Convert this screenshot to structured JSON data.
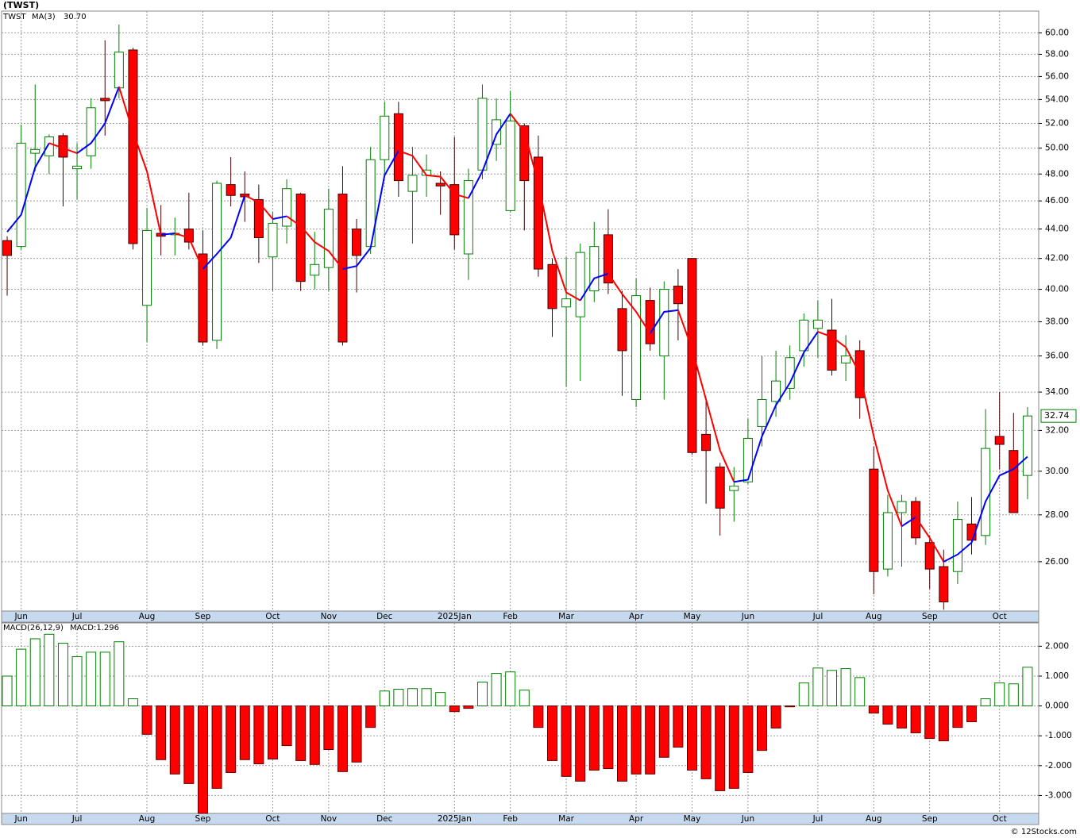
{
  "credit": "© 12Stocks.com",
  "chart_data": [
    {
      "type": "candlestick",
      "title": "(TWST)",
      "legend": "TWST",
      "categories": [
        null,
        null,
        null,
        null,
        null,
        null,
        null,
        null,
        null,
        null,
        null,
        null,
        null,
        null,
        null,
        null,
        null,
        null,
        null,
        null,
        null,
        null,
        null,
        null,
        null,
        null,
        null,
        null,
        null,
        null,
        null,
        null,
        null,
        null,
        null,
        null,
        null,
        null,
        null,
        null,
        null,
        null,
        null,
        null,
        null,
        null,
        null,
        null,
        null,
        null,
        null,
        null,
        null,
        null,
        null,
        null,
        null,
        null,
        null,
        null,
        null,
        null,
        null,
        null,
        null,
        null,
        null,
        null,
        null,
        null,
        null,
        null,
        null,
        null
      ],
      "open": [
        43.2,
        42.8,
        49.6,
        49.4,
        51.0,
        48.4,
        49.4,
        54.1,
        55.0,
        58.4,
        39.0,
        43.7,
        43.6,
        44.0,
        42.3,
        36.9,
        47.2,
        46.5,
        46.1,
        42.1,
        44.2,
        46.5,
        40.9,
        41.4,
        46.5,
        44.0,
        42.8,
        49.1,
        52.8,
        46.7,
        47.9,
        47.3,
        47.2,
        42.3,
        48.3,
        50.3,
        45.3,
        51.8,
        49.3,
        41.6,
        38.9,
        38.3,
        39.9,
        43.6,
        38.8,
        33.6,
        39.3,
        36.0,
        40.2,
        42.0,
        31.8,
        30.2,
        29.1,
        29.5,
        32.2,
        33.5,
        34.2,
        36.3,
        37.6,
        37.5,
        35.6,
        36.3,
        30.1,
        25.7,
        28.1,
        28.6,
        26.8,
        25.8,
        25.6,
        27.6,
        27.1,
        31.7,
        31.0,
        29.8
      ],
      "high": [
        43.5,
        51.9,
        55.3,
        51.1,
        51.2,
        50.4,
        54.1,
        59.3,
        60.8,
        58.6,
        45.5,
        45.7,
        44.8,
        46.6,
        43.9,
        47.5,
        49.3,
        48.2,
        47.2,
        45.2,
        47.6,
        46.6,
        43.8,
        46.9,
        48.6,
        44.7,
        50.1,
        53.8,
        53.8,
        50.1,
        49.5,
        48.2,
        50.9,
        48.4,
        55.3,
        54.1,
        54.7,
        52.0,
        51.0,
        42.0,
        42.1,
        43.0,
        44.5,
        45.4,
        39.9,
        40.7,
        40.1,
        40.5,
        41.3,
        42.0,
        33.6,
        30.4,
        30.2,
        32.6,
        36.0,
        36.3,
        36.6,
        38.5,
        39.3,
        39.4,
        37.2,
        36.9,
        31.2,
        28.9,
        28.9,
        28.8,
        27.1,
        26.5,
        28.6,
        28.8,
        33.1,
        34.0,
        32.9,
        33.2
      ],
      "low": [
        39.6,
        42.6,
        48.2,
        48.0,
        45.6,
        46.1,
        48.4,
        51.0,
        54.1,
        42.6,
        36.8,
        42.2,
        42.2,
        42.6,
        36.6,
        36.4,
        45.6,
        44.5,
        41.7,
        39.9,
        43.0,
        39.9,
        40.0,
        39.9,
        36.6,
        39.8,
        42.3,
        47.8,
        46.3,
        43.0,
        46.3,
        45.0,
        42.6,
        40.6,
        47.6,
        49.0,
        45.2,
        43.9,
        40.8,
        37.1,
        34.3,
        34.6,
        39.2,
        39.7,
        33.8,
        33.2,
        36.3,
        33.6,
        36.9,
        30.8,
        28.5,
        27.1,
        27.7,
        29.4,
        31.2,
        32.7,
        33.6,
        35.4,
        35.9,
        34.9,
        34.6,
        32.6,
        24.7,
        25.4,
        25.8,
        26.7,
        24.9,
        24.1,
        25.1,
        26.3,
        26.7,
        30.1,
        28.1,
        28.7
      ],
      "close": [
        42.2,
        50.4,
        49.9,
        50.9,
        49.3,
        48.6,
        53.3,
        53.9,
        58.2,
        43.0,
        43.9,
        43.5,
        43.7,
        43.1,
        36.8,
        47.3,
        46.4,
        46.3,
        43.4,
        44.4,
        46.9,
        40.5,
        41.6,
        45.4,
        36.8,
        42.2,
        49.1,
        52.6,
        47.5,
        47.9,
        48.3,
        47.1,
        43.6,
        47.5,
        54.1,
        52.3,
        52.2,
        47.5,
        41.3,
        38.8,
        39.4,
        42.4,
        42.8,
        40.4,
        36.3,
        39.6,
        36.7,
        40.0,
        39.1,
        30.9,
        31.0,
        28.3,
        29.3,
        31.6,
        33.6,
        34.6,
        35.9,
        38.1,
        38.1,
        35.2,
        36.0,
        33.7,
        25.6,
        28.1,
        28.6,
        27.0,
        25.7,
        24.4,
        27.8,
        26.9,
        31.1,
        31.3,
        28.1,
        32.74
      ],
      "up_color": "#008000",
      "down_color": "#ff0000",
      "ma": {
        "name": "MA(3)",
        "up_color": "#0000ff",
        "down_color": "#ff0000",
        "last_label": "30.70",
        "values": [
          43.8,
          45.0,
          48.5,
          50.4,
          50.0,
          49.6,
          50.4,
          52.0,
          55.1,
          51.3,
          48.2,
          43.6,
          43.7,
          43.4,
          41.3,
          42.3,
          43.4,
          46.4,
          45.9,
          44.7,
          44.9,
          44.2,
          43.1,
          42.5,
          41.3,
          41.5,
          42.7,
          47.9,
          49.8,
          49.4,
          47.9,
          47.8,
          46.5,
          46.2,
          48.2,
          51.1,
          52.8,
          51.3,
          47.3,
          42.5,
          39.8,
          39.3,
          40.7,
          41.0,
          39.7,
          38.6,
          37.3,
          38.6,
          38.7,
          36.4,
          33.6,
          31.0,
          29.5,
          29.6,
          31.7,
          33.3,
          34.5,
          36.2,
          37.4,
          37.1,
          36.5,
          35.0,
          31.7,
          29.1,
          27.5,
          27.9,
          27.0,
          26.0,
          26.3,
          26.8,
          28.6,
          29.8,
          30.1,
          30.7
        ]
      },
      "log_scale": true,
      "grid": true,
      "ylim": [
        24.05,
        62.1
      ],
      "yticks": [
        {
          "value": 26,
          "label": "26.00"
        },
        {
          "value": 28,
          "label": "28.00"
        },
        {
          "value": 30,
          "label": "30.00"
        },
        {
          "value": 32,
          "label": "32.00"
        },
        {
          "value": 34,
          "label": "34.00"
        },
        {
          "value": 36,
          "label": "36.00"
        },
        {
          "value": 38,
          "label": "38.00"
        },
        {
          "value": 40,
          "label": "40.00"
        },
        {
          "value": 42,
          "label": "42.00"
        },
        {
          "value": 44,
          "label": "44.00"
        },
        {
          "value": 46,
          "label": "46.00"
        },
        {
          "value": 48,
          "label": "48.00"
        },
        {
          "value": 50,
          "label": "50.00"
        },
        {
          "value": 52,
          "label": "52.00"
        },
        {
          "value": 54,
          "label": "54.00"
        },
        {
          "value": 56,
          "label": "56.00"
        },
        {
          "value": 58,
          "label": "58.00"
        },
        {
          "value": 60,
          "label": "60.00"
        }
      ],
      "xlim": [
        -0.4,
        73.8
      ],
      "xticks": [
        {
          "value": 1,
          "label": "Jun"
        },
        {
          "value": 5,
          "label": "Jul"
        },
        {
          "value": 10,
          "label": "Aug"
        },
        {
          "value": 14,
          "label": "Sep"
        },
        {
          "value": 19,
          "label": "Oct"
        },
        {
          "value": 23,
          "label": "Nov"
        },
        {
          "value": 27,
          "label": "Dec"
        },
        {
          "value": 32,
          "label": "2025Jan"
        },
        {
          "value": 36,
          "label": "Feb"
        },
        {
          "value": 40,
          "label": "Mar"
        },
        {
          "value": 45,
          "label": "Apr"
        },
        {
          "value": 49,
          "label": "May"
        },
        {
          "value": 53,
          "label": "Jun"
        },
        {
          "value": 58,
          "label": "Jul"
        },
        {
          "value": 62,
          "label": "Aug"
        },
        {
          "value": 66,
          "label": "Sep"
        },
        {
          "value": 71,
          "label": "Oct"
        }
      ]
    },
    {
      "type": "bar",
      "title": "MACD(26,12,9)",
      "readout": "MACD:1.296",
      "categories": [
        null,
        null,
        null,
        null,
        null,
        null,
        null,
        null,
        null,
        null,
        null,
        null,
        null,
        null,
        null,
        null,
        null,
        null,
        null,
        null,
        null,
        null,
        null,
        null,
        null,
        null,
        null,
        null,
        null,
        null,
        null,
        null,
        null,
        null,
        null,
        null,
        null,
        null,
        null,
        null,
        null,
        null,
        null,
        null,
        null,
        null,
        null,
        null,
        null,
        null,
        null,
        null,
        null,
        null,
        null,
        null,
        null,
        null,
        null,
        null,
        null,
        null,
        null,
        null,
        null,
        null,
        null,
        null,
        null,
        null,
        null,
        null,
        null,
        null
      ],
      "values": [
        1.0,
        1.9,
        2.25,
        2.4,
        2.1,
        1.65,
        1.8,
        1.8,
        2.15,
        0.24,
        -0.95,
        -1.8,
        -2.28,
        -2.6,
        -3.6,
        -2.76,
        -2.23,
        -1.8,
        -1.94,
        -1.78,
        -1.33,
        -1.83,
        -1.96,
        -1.46,
        -2.2,
        -1.88,
        -0.72,
        0.5,
        0.56,
        0.58,
        0.58,
        0.45,
        -0.19,
        -0.08,
        0.8,
        1.09,
        1.14,
        0.53,
        -0.72,
        -1.83,
        -2.36,
        -2.52,
        -2.15,
        -2.1,
        -2.52,
        -2.28,
        -2.28,
        -1.72,
        -1.38,
        -2.15,
        -2.44,
        -2.84,
        -2.76,
        -2.23,
        -1.49,
        -0.74,
        -0.03,
        0.77,
        1.27,
        1.19,
        1.25,
        0.95,
        -0.24,
        -0.61,
        -0.74,
        -0.9,
        -1.09,
        -1.17,
        -0.72,
        -0.53,
        0.24,
        0.77,
        0.74,
        1.296
      ],
      "pos_color": "#008000",
      "neg_color": "#ff0000",
      "grid": true,
      "ylim": [
        -3.6,
        2.78
      ],
      "yticks": [
        {
          "value": 2,
          "label": "2.000"
        },
        {
          "value": 1,
          "label": "1.000"
        },
        {
          "value": 0,
          "label": "0.000"
        },
        {
          "value": -1,
          "label": "-1.000"
        },
        {
          "value": -2,
          "label": "-2.000"
        },
        {
          "value": -3,
          "label": "-3.000"
        }
      ],
      "xlim": [
        -0.4,
        73.8
      ],
      "xticks": [
        {
          "value": 1,
          "label": "Jun"
        },
        {
          "value": 5,
          "label": "Jul"
        },
        {
          "value": 10,
          "label": "Aug"
        },
        {
          "value": 14,
          "label": "Sep"
        },
        {
          "value": 19,
          "label": "Oct"
        },
        {
          "value": 23,
          "label": "Nov"
        },
        {
          "value": 27,
          "label": "Dec"
        },
        {
          "value": 32,
          "label": "2025Jan"
        },
        {
          "value": 36,
          "label": "Feb"
        },
        {
          "value": 40,
          "label": "Mar"
        },
        {
          "value": 45,
          "label": "Apr"
        },
        {
          "value": 49,
          "label": "May"
        },
        {
          "value": 53,
          "label": "Jun"
        },
        {
          "value": 58,
          "label": "Jul"
        },
        {
          "value": 62,
          "label": "Aug"
        },
        {
          "value": 66,
          "label": "Sep"
        },
        {
          "value": 71,
          "label": "Oct"
        }
      ]
    }
  ]
}
